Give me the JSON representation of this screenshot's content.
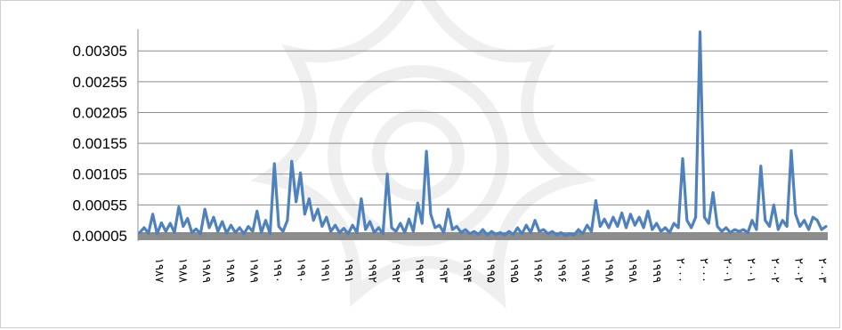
{
  "chart_data": {
    "type": "line",
    "title": "",
    "xlabel": "",
    "ylabel": "",
    "ylim": [
      5e-05,
      0.0034
    ],
    "yticks": [
      "0.00005",
      "0.00055",
      "0.00105",
      "0.00155",
      "0.00205",
      "0.00255",
      "0.00305"
    ],
    "ytick_values": [
      5e-05,
      0.00055,
      0.00105,
      0.00155,
      0.00205,
      0.00255,
      0.00305
    ],
    "grid": true,
    "legend": "none",
    "colors": {
      "line": "#4f81bd",
      "baseline_band": "#8c8c8c",
      "gridline": "#8c8c8c"
    },
    "xtick_labels": [
      "۱۹۸۷",
      "۱۹۸۸",
      "۱۹۸۹",
      "۱۹۸۹",
      "۱۹۸۹",
      "۱۹۹۰",
      "۱۹۹۰",
      "۱۹۹۱",
      "۱۹۹۱",
      "۱۹۹۲",
      "۱۹۹۲",
      "۱۹۹۳",
      "۱۹۹۳",
      "۱۹۹۴",
      "۱۹۹۵",
      "۱۹۹۵",
      "۱۹۹۶",
      "۱۹۹۶",
      "۱۹۹۷",
      "۱۹۹۸",
      "۱۹۹۸",
      "۱۹۹۹",
      "۲۰۰۰",
      "۲۰۰۰",
      "۲۰۰۱",
      "۲۰۰۱",
      "۲۰۰۲",
      "۲۰۰۲",
      "۲۰۰۳"
    ],
    "series": [
      {
        "values": [
          0.0001,
          0.00018,
          9e-05,
          0.0004,
          8e-05,
          0.00026,
          0.00012,
          0.00025,
          0.0001,
          0.00052,
          0.0002,
          0.00033,
          0.0001,
          0.00016,
          8e-05,
          0.00048,
          0.00018,
          0.00035,
          0.00012,
          0.00028,
          9e-05,
          0.00022,
          0.0001,
          0.00018,
          8e-05,
          0.0002,
          0.00012,
          0.00045,
          0.0001,
          0.0003,
          8e-05,
          0.00122,
          0.0002,
          0.00012,
          0.0003,
          0.00126,
          0.0006,
          0.00107,
          0.0004,
          0.00065,
          0.0003,
          0.00048,
          0.0002,
          0.00035,
          0.00012,
          0.00022,
          0.0001,
          0.00017,
          8e-05,
          0.00022,
          0.0001,
          0.00065,
          0.00015,
          0.00028,
          0.0001,
          0.00018,
          8e-05,
          0.00105,
          0.00018,
          0.00012,
          0.00025,
          0.0001,
          0.00032,
          0.00012,
          0.00058,
          0.00025,
          0.00142,
          0.0004,
          0.00018,
          0.00022,
          0.0001,
          0.00048,
          0.00015,
          0.0002,
          0.0001,
          0.00015,
          8e-05,
          0.00012,
          7e-05,
          0.00015,
          6e-05,
          0.00012,
          7e-05,
          0.0001,
          6e-05,
          0.00012,
          7e-05,
          0.00018,
          8e-05,
          0.00022,
          0.0001,
          0.0003,
          0.00012,
          0.00015,
          8e-05,
          0.00012,
          6e-05,
          0.0001,
          5e-05,
          8e-05,
          6e-05,
          0.00015,
          8e-05,
          0.00022,
          0.00012,
          0.00062,
          0.0002,
          0.00032,
          0.00018,
          0.00035,
          0.0002,
          0.00042,
          0.00018,
          0.0004,
          0.00022,
          0.00035,
          0.00018,
          0.00045,
          0.00015,
          0.00025,
          0.00012,
          0.00018,
          0.0001,
          0.00025,
          0.00018,
          0.0013,
          0.0003,
          0.00018,
          0.00035,
          0.00336,
          0.00035,
          0.00025,
          0.00075,
          0.0002,
          0.00012,
          0.00018,
          0.0001,
          0.00015,
          0.00012,
          0.00015,
          0.0001,
          0.0003,
          0.00015,
          0.00118,
          0.0003,
          0.0002,
          0.00055,
          0.00015,
          0.0003,
          0.0002,
          0.00143,
          0.0004,
          0.0002,
          0.0003,
          0.00015,
          0.00035,
          0.0003,
          0.00015,
          0.0002
        ]
      }
    ]
  }
}
